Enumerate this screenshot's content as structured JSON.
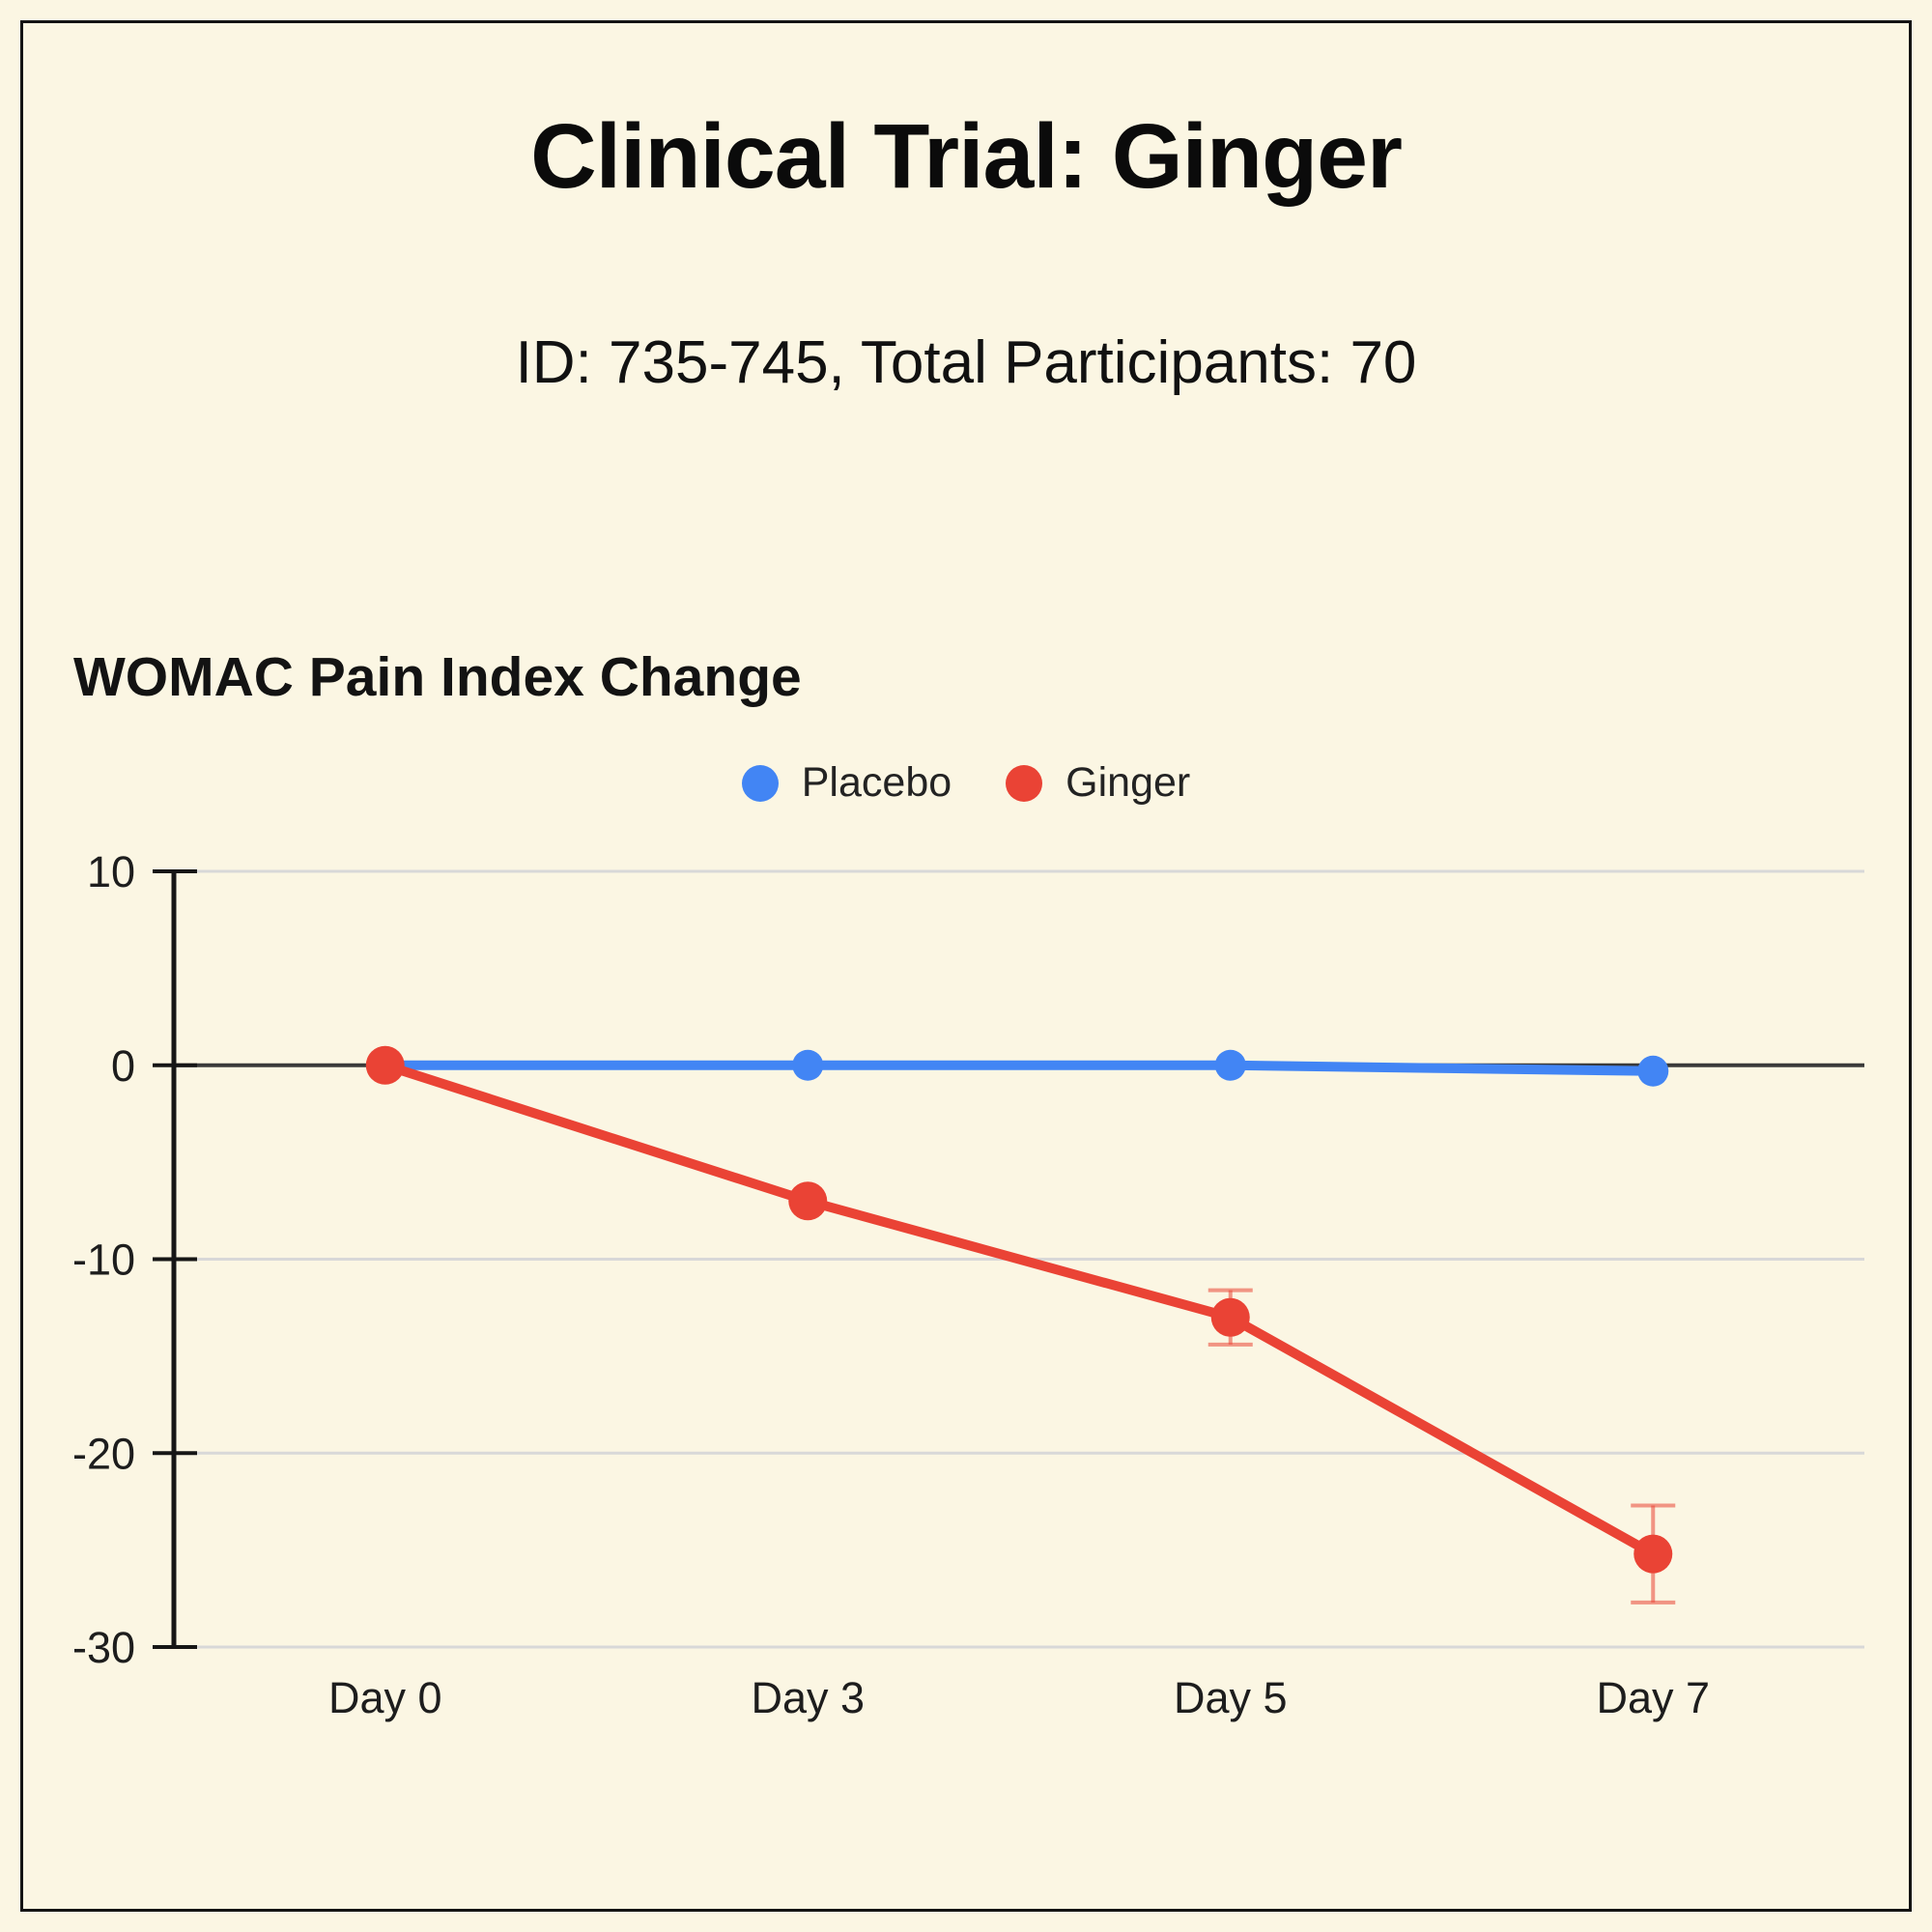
{
  "page": {
    "background_color": "#FBF6E3",
    "frame_color": "#141414"
  },
  "header": {
    "title": "Clinical Trial: Ginger",
    "subtitle": "ID: 735-745, Total Participants: 70"
  },
  "chart_data": {
    "type": "line",
    "title": "WOMAC Pain Index Change",
    "categories": [
      "Day 0",
      "Day 3",
      "Day 5",
      "Day 7"
    ],
    "series": [
      {
        "name": "Placebo",
        "color": "#4285F4",
        "values": [
          0,
          0,
          0,
          -0.3
        ],
        "errors": [
          null,
          null,
          null,
          null
        ]
      },
      {
        "name": "Ginger",
        "color": "#EA4335",
        "values": [
          0,
          -7,
          -13,
          -25.2
        ],
        "errors": [
          null,
          null,
          1.4,
          2.5
        ]
      }
    ],
    "xlabel": "",
    "ylabel": "",
    "ylim": [
      -30,
      10
    ],
    "yticks": [
      10,
      0,
      -10,
      -20,
      -30
    ],
    "grid": "horizontal",
    "legend_position": "top",
    "colors": {
      "grid_line": "#d8d8d8",
      "zero_line": "#3a3a3a",
      "axis_line": "#161616",
      "tick_text": "#1d1d1d"
    }
  }
}
